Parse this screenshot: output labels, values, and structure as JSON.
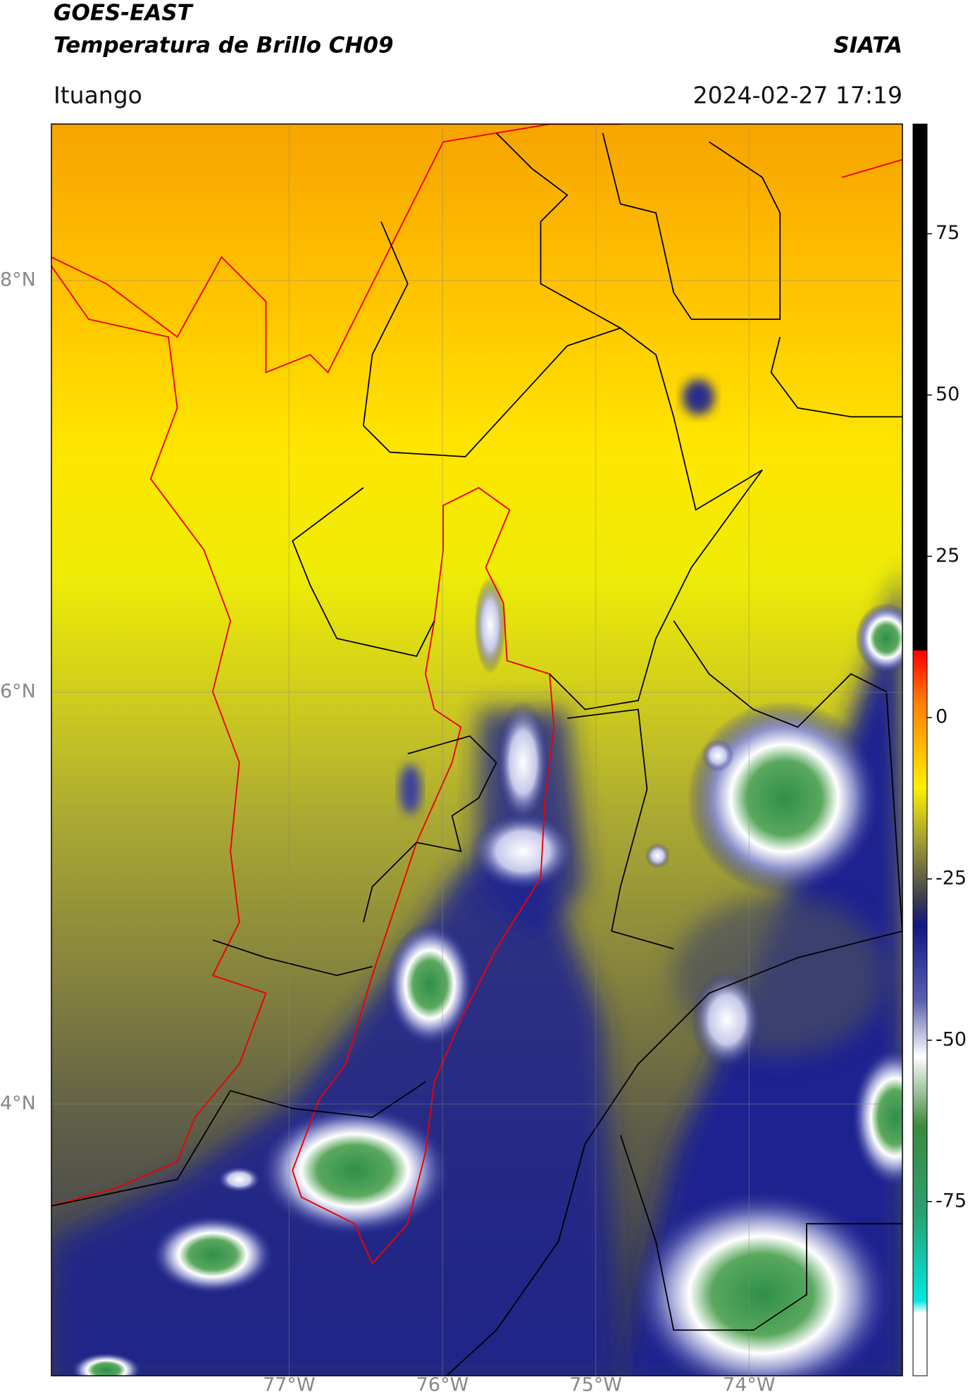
{
  "header": {
    "title": "GOES-EAST",
    "subtitle": "Temperatura de Brillo CH09",
    "source": "SIATA",
    "location": "Ituango",
    "datetime": "2024-02-27 17:19"
  },
  "map": {
    "xlim": [
      -78.55,
      -73.0
    ],
    "ylim": [
      2.68,
      8.76
    ],
    "xticks": [
      {
        "value": -77,
        "label": "77°W"
      },
      {
        "value": -76,
        "label": "76°W"
      },
      {
        "value": -75,
        "label": "75°W"
      },
      {
        "value": -74,
        "label": "74°W"
      }
    ],
    "yticks": [
      {
        "value": 8,
        "label": "8°N"
      },
      {
        "value": 6,
        "label": "6°N"
      },
      {
        "value": 4,
        "label": "4°N"
      }
    ],
    "grid": true
  },
  "colorbar": {
    "lim": [
      -102,
      92
    ],
    "ticks": [
      75,
      50,
      25,
      0,
      -25,
      -50,
      -75
    ]
  }
}
